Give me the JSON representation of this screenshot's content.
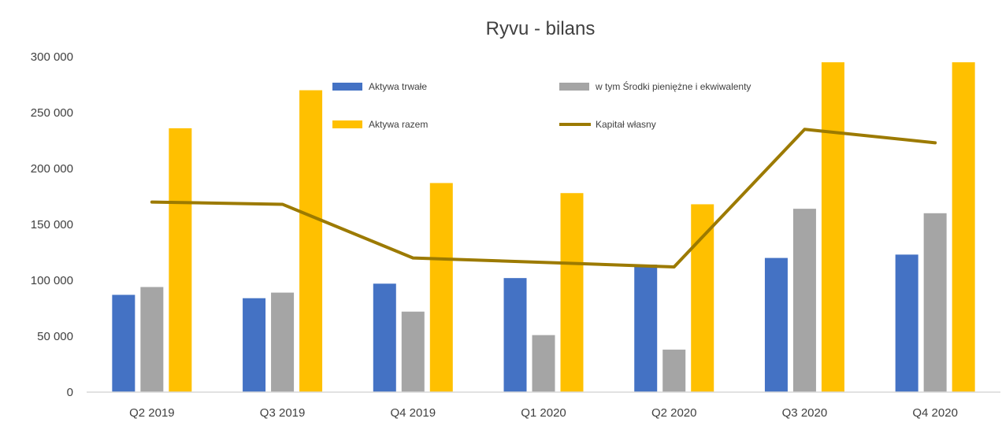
{
  "chart_data": {
    "type": "bar",
    "title": "Ryvu - bilans",
    "xlabel": "",
    "ylabel": "",
    "categories": [
      "Q2 2019",
      "Q3 2019",
      "Q4 2019",
      "Q1 2020",
      "Q2 2020",
      "Q3 2020",
      "Q4 2020"
    ],
    "y_tick_labels": [
      "0",
      "50 000",
      "100 000",
      "150 000",
      "200 000",
      "250 000",
      "300 000"
    ],
    "y_ticks": [
      0,
      50000,
      100000,
      150000,
      200000,
      250000,
      300000
    ],
    "ylim": [
      0,
      300000
    ],
    "grid": false,
    "legend_placement": "inside-top",
    "series": [
      {
        "name": "Aktywa trwałe",
        "type": "bar",
        "color": "#4472C4",
        "values": [
          87000,
          84000,
          97000,
          102000,
          114000,
          120000,
          123000
        ]
      },
      {
        "name": "w tym Środki pieniężne i ekwiwalenty",
        "type": "bar",
        "color": "#A5A5A5",
        "values": [
          94000,
          89000,
          72000,
          51000,
          38000,
          164000,
          160000
        ]
      },
      {
        "name": "Aktywa razem",
        "type": "bar",
        "color": "#FFC000",
        "values": [
          236000,
          270000,
          187000,
          178000,
          168000,
          295000,
          295000
        ]
      },
      {
        "name": "Kapitał własny",
        "type": "line",
        "color": "#9C7A00",
        "values": [
          170000,
          168000,
          120000,
          116000,
          112000,
          235000,
          223000
        ]
      }
    ]
  }
}
